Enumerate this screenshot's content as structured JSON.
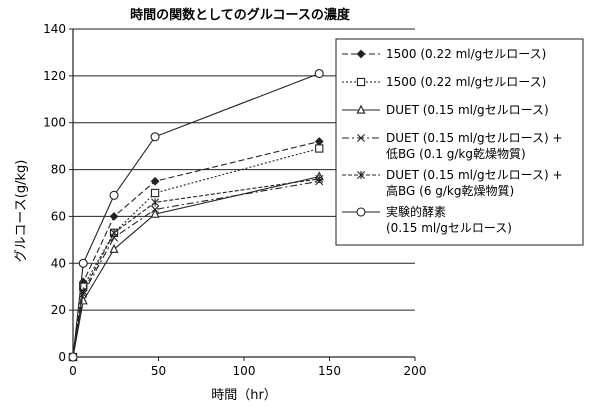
{
  "chart_data": {
    "type": "line",
    "title": "時間の関数としてのグルコースの濃度",
    "xlabel": "時間（hr）",
    "ylabel": "グルコース(g/kg)",
    "xlim": [
      0,
      200
    ],
    "ylim": [
      0,
      140
    ],
    "xticks": [
      "0",
      "50",
      "100",
      "150",
      "200"
    ],
    "yticks": [
      "0",
      "20",
      "40",
      "60",
      "80",
      "100",
      "120",
      "140"
    ],
    "grid": "horizontal",
    "legend_position": "top-right",
    "series": [
      {
        "name": "1500 (0.22 ml/gセルロース)",
        "legend_lines": [
          "1500 (0.22 ml/gセルロース)"
        ],
        "marker": "diamond",
        "dash": "6,3",
        "x": [
          0,
          6,
          24,
          48,
          144
        ],
        "y": [
          0,
          32,
          60,
          75,
          92
        ]
      },
      {
        "name": "1500 (0.22 ml/gセルロース)",
        "legend_lines": [
          "1500 (0.22 ml/gセルロース)"
        ],
        "marker": "square",
        "dash": "2,2",
        "x": [
          0,
          6,
          24,
          48,
          144
        ],
        "y": [
          0,
          30,
          53,
          70,
          89
        ]
      },
      {
        "name": "DUET (0.15 ml/gセルロース)",
        "legend_lines": [
          "DUET (0.15 ml/gセルロース)"
        ],
        "marker": "triangle",
        "dash": "",
        "x": [
          0,
          6,
          24,
          48,
          144
        ],
        "y": [
          0,
          24,
          46,
          61,
          77
        ]
      },
      {
        "name": "DUET (0.15 ml/gセルロース) + 低BG (0.1 g/kg乾燥物質)",
        "legend_lines": [
          "DUET (0.15 ml/gセルロース) +",
          "低BG (0.1 g/kg乾燥物質)"
        ],
        "marker": "x",
        "dash": "7,3,2,3",
        "x": [
          0,
          6,
          24,
          48,
          144
        ],
        "y": [
          0,
          27,
          51,
          63,
          75
        ]
      },
      {
        "name": "DUET (0.15 ml/gセルロース) + 高BG (6 g/kg乾燥物質)",
        "legend_lines": [
          "DUET (0.15 ml/gセルロース) +",
          "高BG (6 g/kg乾燥物質)"
        ],
        "marker": "star",
        "dash": "4,2",
        "x": [
          0,
          6,
          24,
          48,
          144
        ],
        "y": [
          0,
          28,
          53,
          66,
          76
        ]
      },
      {
        "name": "実験的酵素 (0.15 ml/gセルロース)",
        "legend_lines": [
          "実験的酵素",
          "(0.15 ml/gセルロース)"
        ],
        "marker": "circle",
        "dash": "",
        "x": [
          0,
          6,
          24,
          48,
          144
        ],
        "y": [
          0,
          40,
          69,
          94,
          121
        ]
      }
    ]
  }
}
